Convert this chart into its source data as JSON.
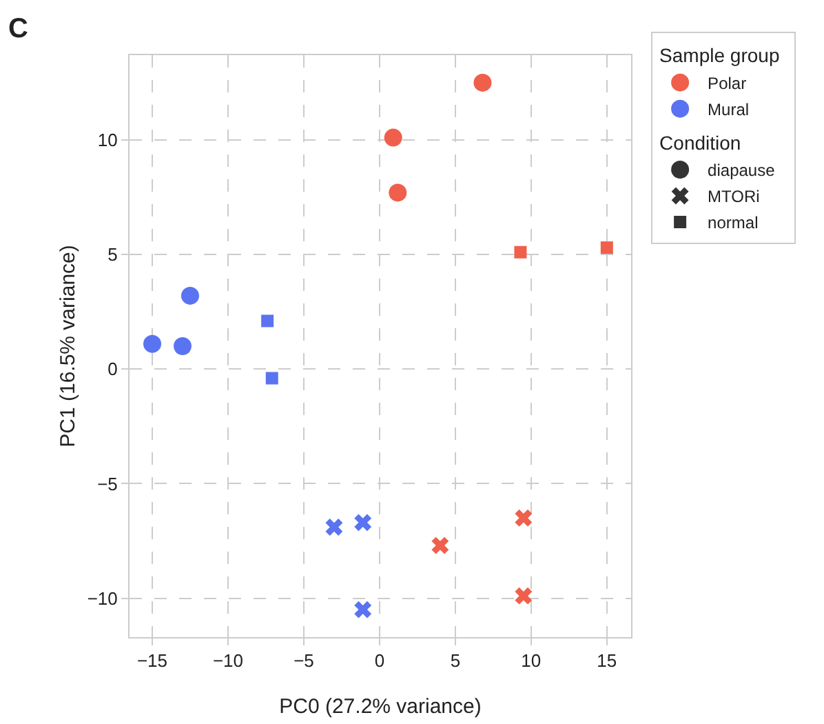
{
  "chart_data": {
    "type": "scatter",
    "title": "C",
    "xlabel": "PC0 (27.2% variance)",
    "ylabel": "PC1 (16.5% variance)",
    "legend_title": "Sample group",
    "annotations": [
      "Condition"
    ],
    "series": [
      {
        "color": "#ef5f4b",
        "marker": "circle",
        "x": [
          6.8,
          0.9,
          1.2
        ],
        "values": [
          12.5,
          10.1,
          7.7
        ]
      },
      {
        "color": "#ef5f4b",
        "marker": "cross",
        "x": [
          4.0,
          9.5,
          9.5
        ],
        "values": [
          -7.7,
          -6.5,
          -9.9
        ]
      },
      {
        "color": "#ef5f4b",
        "marker": "square",
        "x": [
          9.3,
          15.0
        ],
        "values": [
          5.1,
          5.3
        ]
      },
      {
        "color": "#5a73f0",
        "marker": "circle",
        "x": [
          -15.0,
          -13.0,
          -12.5
        ],
        "values": [
          1.1,
          1.0,
          3.2
        ]
      },
      {
        "color": "#5a73f0",
        "marker": "cross",
        "x": [
          -3.0,
          -1.1,
          -1.1
        ],
        "values": [
          -6.9,
          -6.7,
          -10.5
        ]
      },
      {
        "color": "#5a73f0",
        "marker": "square",
        "x": [
          -7.4,
          -7.1
        ],
        "values": [
          2.1,
          -0.4
        ]
      },
      {
        "name": "Polar",
        "color": "#ef5f4b",
        "marker": "circle"
      },
      {
        "name": "Mural",
        "color": "#5a73f0",
        "marker": "circle"
      },
      {
        "name": "diapause",
        "color": "#333333",
        "marker": "circle"
      },
      {
        "name": "MTORi",
        "color": "#333333",
        "marker": "cross"
      },
      {
        "name": "normal",
        "color": "#333333",
        "marker": "square"
      }
    ],
    "xlim": [
      -16.5,
      16.6
    ],
    "xticks": [
      -15,
      -10,
      -5,
      0,
      5,
      10,
      15
    ],
    "ylim": [
      -11.7,
      13.7
    ],
    "yticks": [
      -10,
      -5,
      0,
      5,
      10
    ],
    "grid": true,
    "legend": "right"
  }
}
